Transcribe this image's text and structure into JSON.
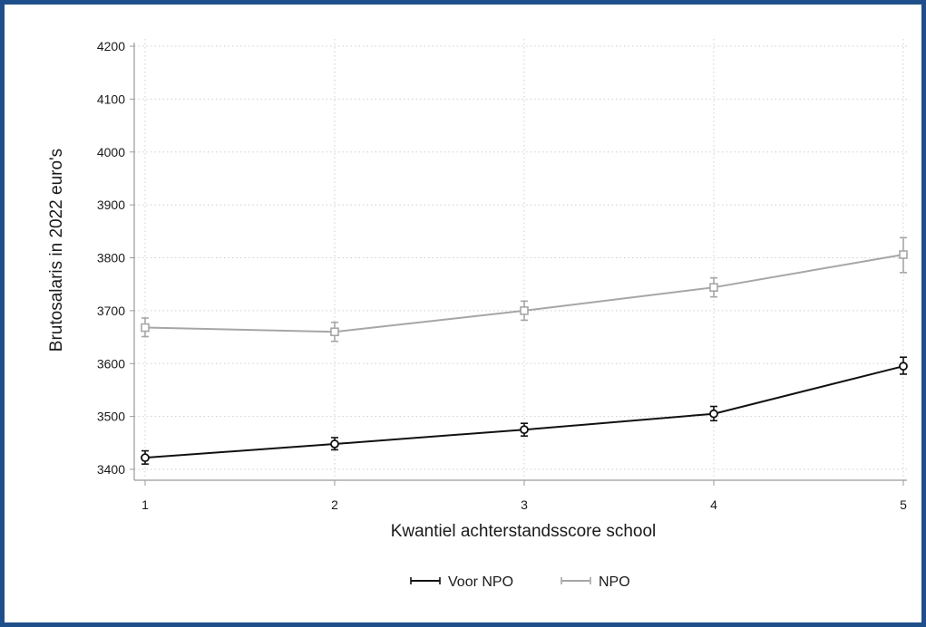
{
  "chart_data": {
    "type": "line",
    "xlabel": "Kwantiel achterstandsscore school",
    "ylabel": "Brutosalaris in 2022 euro's",
    "x": [
      1,
      2,
      3,
      4,
      5
    ],
    "xticks": [
      "1",
      "2",
      "3",
      "4",
      "5"
    ],
    "ylim": [
      3400,
      4200
    ],
    "yticks": [
      3400,
      3500,
      3600,
      3700,
      3800,
      3900,
      4000,
      4100,
      4200
    ],
    "grid": true,
    "legend_position": "bottom",
    "series": [
      {
        "name": "Voor NPO",
        "marker": "circle",
        "color": "#111111",
        "values": [
          3422,
          3448,
          3475,
          3505,
          3595
        ],
        "ci_low": [
          3410,
          3437,
          3463,
          3492,
          3580
        ],
        "ci_high": [
          3435,
          3460,
          3487,
          3519,
          3612
        ]
      },
      {
        "name": "NPO",
        "marker": "square",
        "color": "#a6a6a6",
        "values": [
          3668,
          3660,
          3700,
          3744,
          3806
        ],
        "ci_low": [
          3651,
          3642,
          3682,
          3726,
          3772
        ],
        "ci_high": [
          3686,
          3678,
          3718,
          3762,
          3838
        ]
      }
    ]
  }
}
